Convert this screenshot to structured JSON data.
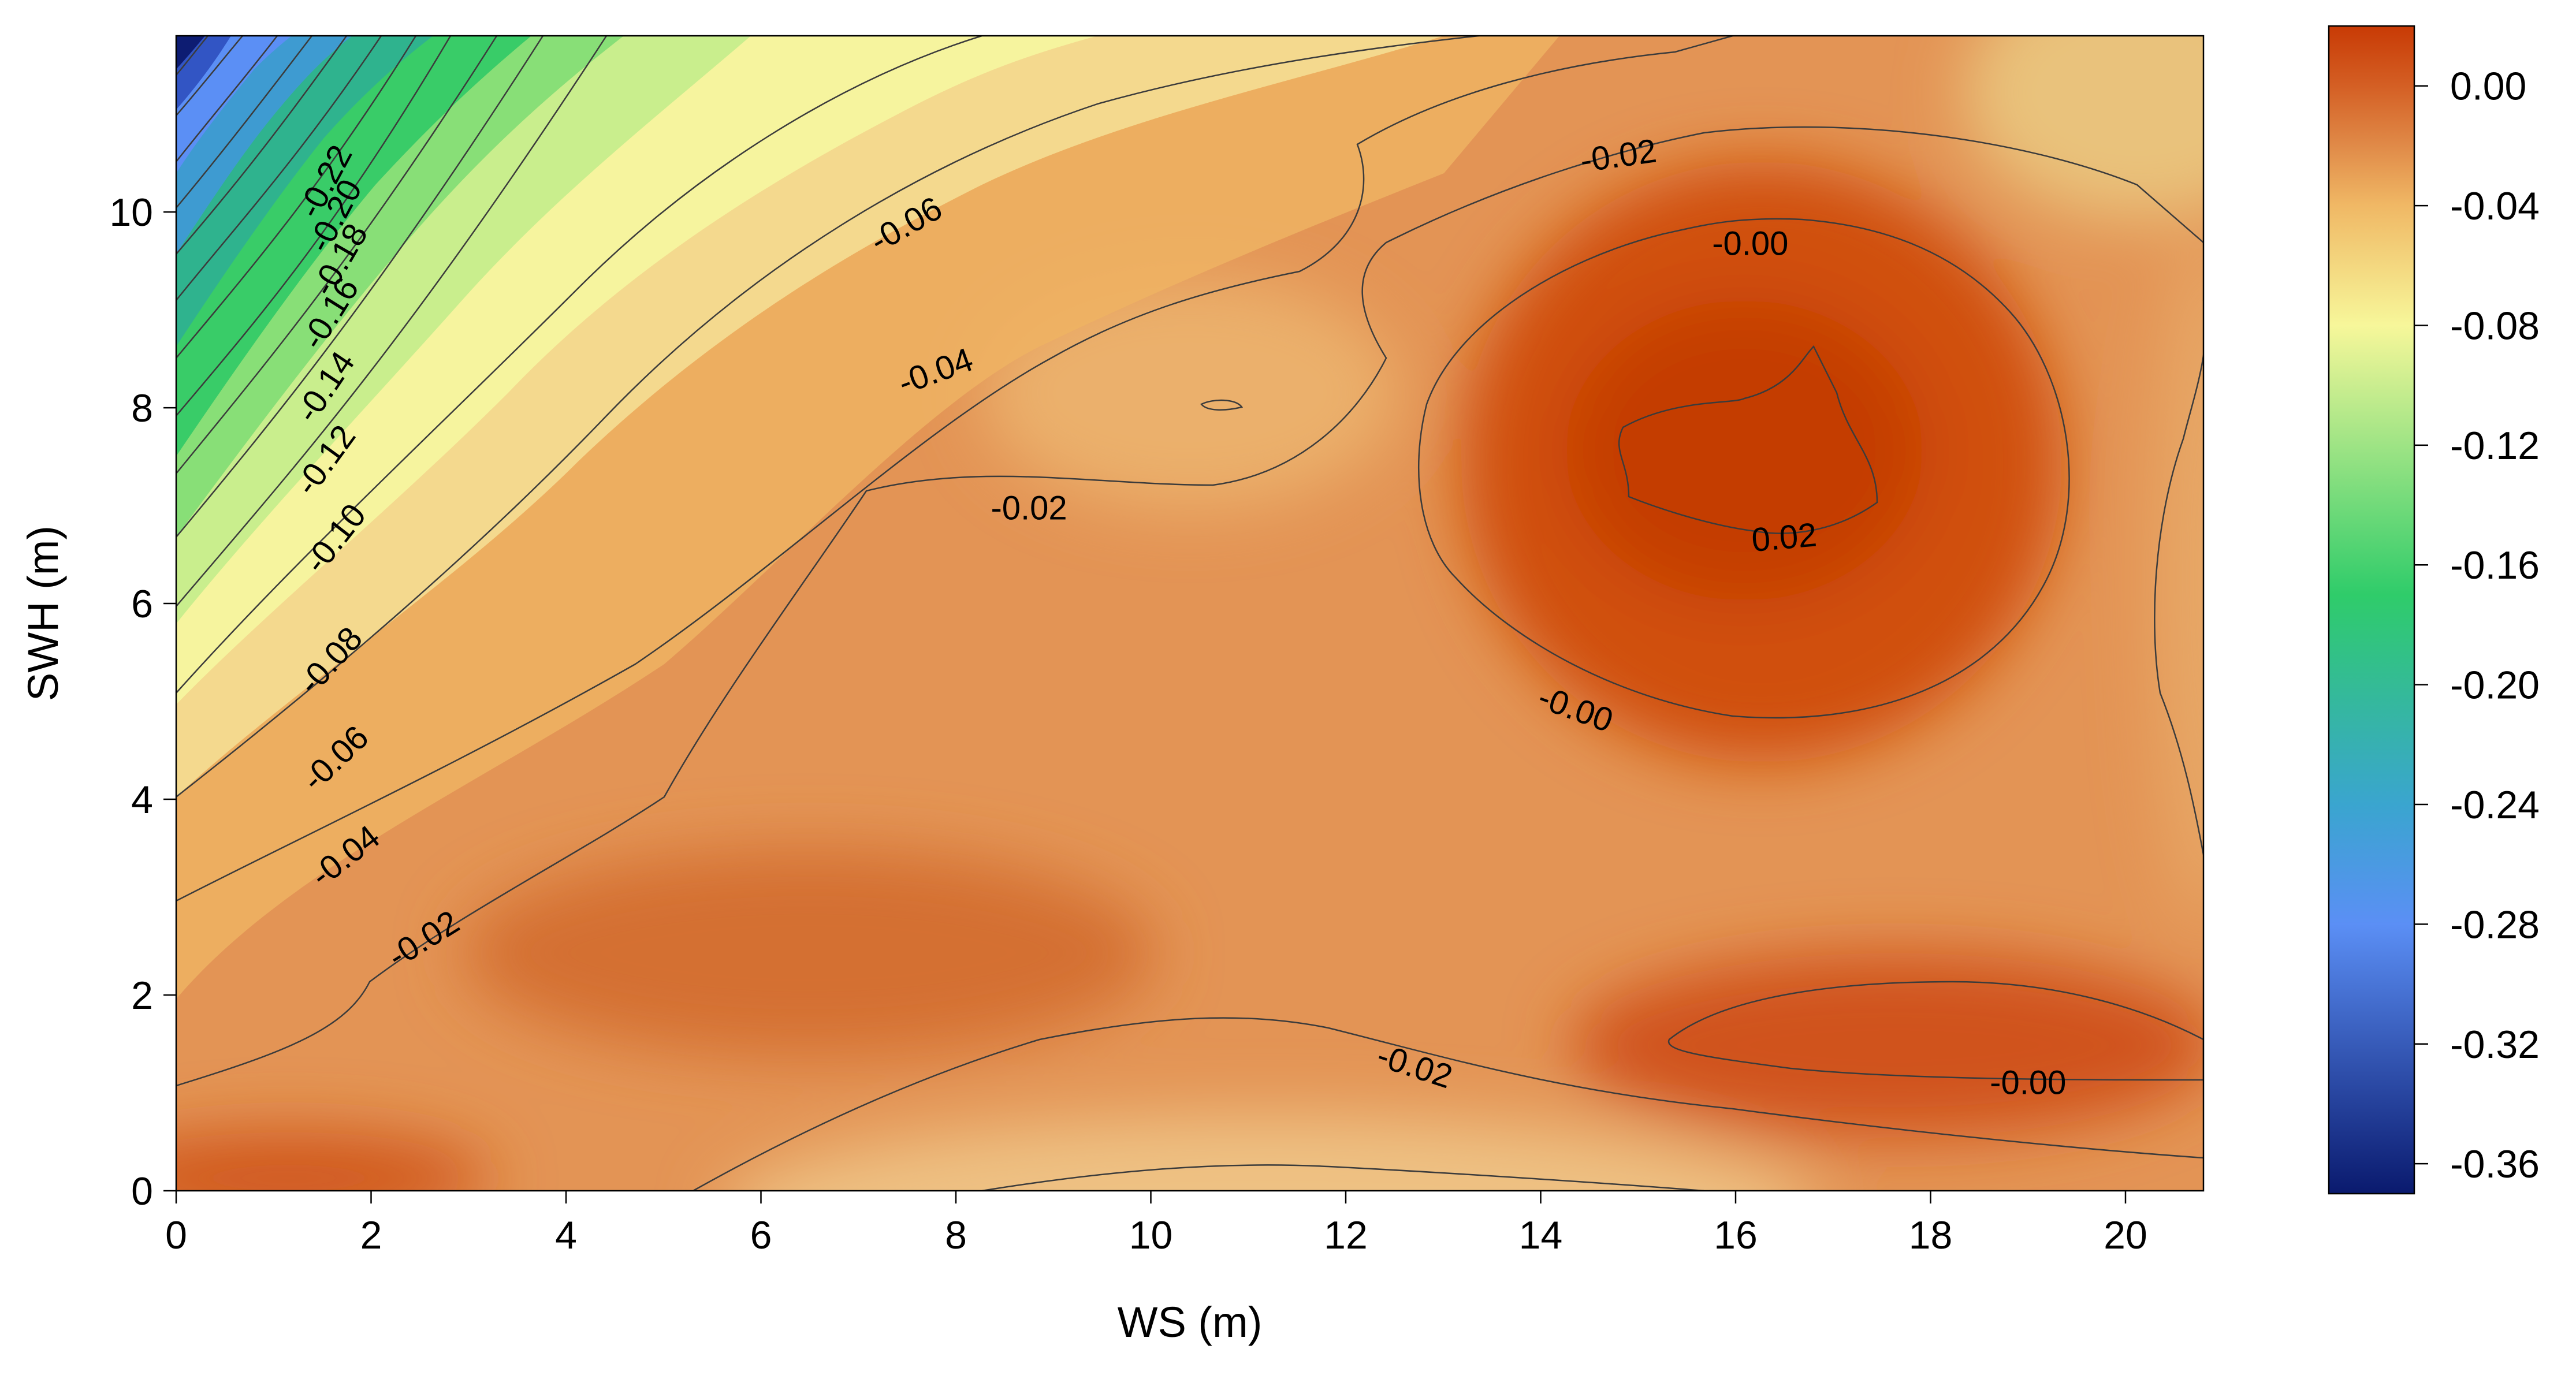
{
  "chart_data": {
    "type": "heatmap",
    "subtype": "filled contour",
    "title": "",
    "xlabel": "WS (m)",
    "ylabel": "SWH (m)",
    "xlim": [
      0,
      20.8
    ],
    "ylim": [
      0,
      11.8
    ],
    "x_ticks": [
      0,
      2,
      4,
      6,
      8,
      10,
      12,
      14,
      16,
      18,
      20
    ],
    "y_ticks": [
      0,
      2,
      4,
      6,
      8,
      10
    ],
    "colorbar": {
      "range": [
        -0.37,
        0.02
      ],
      "ticks": [
        0.0,
        -0.04,
        -0.08,
        -0.12,
        -0.16,
        -0.2,
        -0.24,
        -0.28,
        -0.32,
        -0.36
      ],
      "tick_labels": [
        "0.00",
        "-0.04",
        "-0.08",
        "-0.12",
        "-0.16",
        "-0.20",
        "-0.24",
        "-0.28",
        "-0.32",
        "-0.36"
      ],
      "colors": [
        {
          "value": -0.37,
          "color": "#0a1a6e"
        },
        {
          "value": -0.28,
          "color": "#5b8ff5"
        },
        {
          "value": -0.24,
          "color": "#3aa5cf"
        },
        {
          "value": -0.17,
          "color": "#2fcc6a"
        },
        {
          "value": -0.08,
          "color": "#f7f79a"
        },
        {
          "value": -0.04,
          "color": "#f0b865"
        },
        {
          "value": -0.02,
          "color": "#e08a48"
        },
        {
          "value": 0.0,
          "color": "#d45f24"
        },
        {
          "value": 0.02,
          "color": "#c83a05"
        }
      ]
    },
    "contour_labels": [
      {
        "text": "-0.22",
        "x": 1.55,
        "y": 10.3,
        "angle": -62
      },
      {
        "text": "-0.20",
        "x": 1.65,
        "y": 9.95,
        "angle": -62
      },
      {
        "text": "-0.18",
        "x": 1.7,
        "y": 9.5,
        "angle": -60
      },
      {
        "text": "-0.16",
        "x": 1.6,
        "y": 8.95,
        "angle": -58
      },
      {
        "text": "-0.14",
        "x": 1.55,
        "y": 8.2,
        "angle": -56
      },
      {
        "text": "-0.12",
        "x": 1.55,
        "y": 7.45,
        "angle": -54
      },
      {
        "text": "-0.10",
        "x": 1.65,
        "y": 6.65,
        "angle": -52
      },
      {
        "text": "-0.08",
        "x": 1.6,
        "y": 5.4,
        "angle": -48
      },
      {
        "text": "-0.06",
        "x": 1.65,
        "y": 4.4,
        "angle": -44
      },
      {
        "text": "-0.04",
        "x": 1.75,
        "y": 3.4,
        "angle": -38
      },
      {
        "text": "-0.02",
        "x": 2.55,
        "y": 2.55,
        "angle": -32
      },
      {
        "text": "-0.06",
        "x": 7.5,
        "y": 9.85,
        "angle": -30
      },
      {
        "text": "-0.04",
        "x": 7.8,
        "y": 8.35,
        "angle": -20
      },
      {
        "text": "-0.02",
        "x": 8.75,
        "y": 6.95,
        "angle": 0
      },
      {
        "text": "-0.02",
        "x": 14.8,
        "y": 10.55,
        "angle": -8
      },
      {
        "text": "-0.00",
        "x": 16.15,
        "y": 9.65,
        "angle": 0
      },
      {
        "text": "0.02",
        "x": 16.5,
        "y": 6.65,
        "angle": -5
      },
      {
        "text": "-0.00",
        "x": 14.35,
        "y": 4.9,
        "angle": 20
      },
      {
        "text": "-0.02",
        "x": 12.7,
        "y": 1.25,
        "angle": 18
      },
      {
        "text": "-0.00",
        "x": 19.0,
        "y": 1.08,
        "angle": 0
      }
    ],
    "grid": false,
    "legend": "colorbar-right"
  }
}
